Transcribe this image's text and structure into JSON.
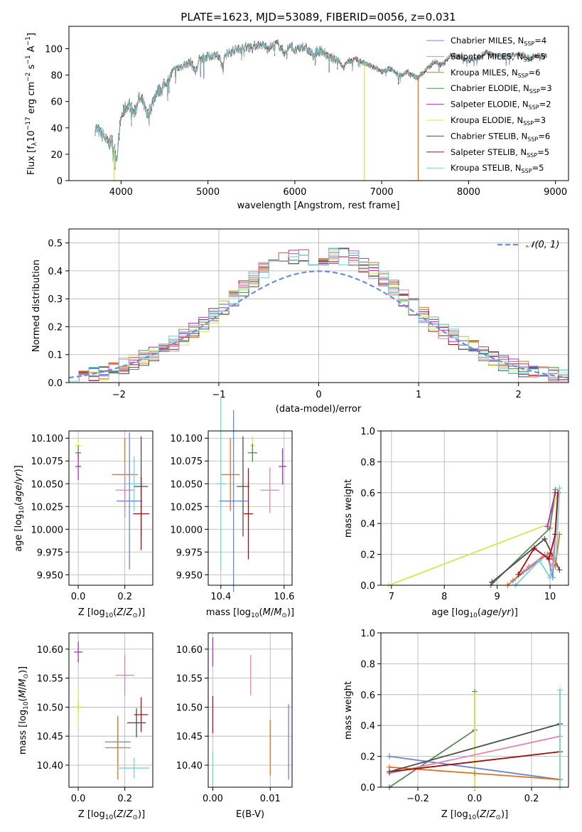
{
  "colors": {
    "blue": "#6b86d6",
    "pink": "#e283b4",
    "orange": "#e0731e",
    "green": "#5a8a5a",
    "purple": "#a630c0",
    "yellow": "#d4e84e",
    "darkgray": "#4d4d4d",
    "darkred": "#a01010",
    "cyan": "#76d2d8",
    "normal": "#6b8fd6"
  },
  "chart_data": [
    {
      "id": "spectrum",
      "type": "line",
      "title": "PLATE=1623, MJD=53089, FIBERID=0056, z=0.031",
      "xlabel": "wavelength [Angstrom, rest frame]",
      "ylabel": "Flux [fλ10⁻¹⁷ erg cm⁻² s⁻¹ A⁻¹]",
      "xlim": [
        3400,
        9150
      ],
      "ylim": [
        0,
        117
      ],
      "xticks": [
        "4000",
        "5000",
        "6000",
        "7000",
        "8000",
        "9000"
      ],
      "yticks": [
        "0",
        "20",
        "40",
        "60",
        "80",
        "100"
      ],
      "legend_position": "top-right",
      "spectrum_x": [
        3700,
        3750,
        3800,
        3850,
        3900,
        3950,
        4000,
        4050,
        4100,
        4150,
        4200,
        4250,
        4300,
        4400,
        4500,
        4600,
        4700,
        4800,
        4861,
        4900,
        5000,
        5100,
        5175,
        5200,
        5300,
        5400,
        5500,
        5600,
        5700,
        5800,
        5893,
        5950,
        6000,
        6100,
        6200,
        6300,
        6400,
        6500,
        6563,
        6600,
        6700,
        6800,
        6900,
        7000,
        7100,
        7200,
        7300,
        7400,
        7500,
        7600,
        7700,
        7800,
        7900,
        8000,
        8100,
        8200,
        8300,
        8400,
        8500,
        8600,
        8700,
        8800,
        8900
      ],
      "spectrum_y": [
        40,
        37,
        34,
        28,
        30,
        17,
        48,
        55,
        58,
        50,
        62,
        60,
        48,
        66,
        72,
        83,
        87,
        90,
        82,
        92,
        94,
        96,
        86,
        96,
        99,
        101,
        102,
        103,
        101,
        104,
        96,
        104,
        98,
        102,
        96,
        99,
        93,
        92,
        85,
        90,
        92,
        89,
        86,
        83,
        85,
        80,
        82,
        78,
        83,
        90,
        88,
        95,
        94,
        91,
        93,
        97,
        95,
        94,
        95,
        96,
        93,
        95,
        94
      ],
      "series": [
        {
          "name": "Chabrier MILES, N_SSP=4",
          "legend": "Chabrier MILES, N",
          "sub": "SSP",
          "suffix": "=4",
          "color": "blue"
        },
        {
          "name": "Salpeter MILES, N_SSP=5",
          "legend": "Salpeter MILES, N",
          "sub": "SSP",
          "suffix": "=5",
          "color": "pink"
        },
        {
          "name": "Kroupa MILES, N_SSP=6",
          "legend": "Kroupa MILES, N",
          "sub": "SSP",
          "suffix": "=6",
          "color": "orange"
        },
        {
          "name": "Chabrier ELODIE, N_SSP=3",
          "legend": "Chabrier ELODIE, N",
          "sub": "SSP",
          "suffix": "=3",
          "color": "green"
        },
        {
          "name": "Salpeter ELODIE, N_SSP=2",
          "legend": "Salpeter ELODIE, N",
          "sub": "SSP",
          "suffix": "=2",
          "color": "purple"
        },
        {
          "name": "Kroupa ELODIE, N_SSP=3",
          "legend": "Kroupa ELODIE, N",
          "sub": "SSP",
          "suffix": "=3",
          "color": "yellow"
        },
        {
          "name": "Chabrier STELIB, N_SSP=6",
          "legend": "Chabrier STELIB, N",
          "sub": "SSP",
          "suffix": "=6",
          "color": "darkgray"
        },
        {
          "name": "Salpeter STELIB, N_SSP=5",
          "legend": "Salpeter STELIB, N",
          "sub": "SSP",
          "suffix": "=5",
          "color": "darkred"
        },
        {
          "name": "Kroupa STELIB, N_SSP=5",
          "legend": "Kroupa STELIB, N",
          "sub": "SSP",
          "suffix": "=5",
          "color": "cyan"
        }
      ],
      "drops": [
        {
          "x": 3920,
          "color": "yellow"
        },
        {
          "x": 6800,
          "color": "yellow"
        },
        {
          "x": 7420,
          "color": "orange"
        }
      ]
    },
    {
      "id": "residuals",
      "type": "line",
      "xlabel": "(data-model)/error",
      "ylabel": "Normed distribution",
      "xlim": [
        -2.5,
        2.5
      ],
      "ylim": [
        0,
        0.55
      ],
      "xticks": [
        "−2",
        "−1",
        "0",
        "1",
        "2"
      ],
      "yticks": [
        "0.0",
        "0.1",
        "0.2",
        "0.3",
        "0.4",
        "0.5"
      ],
      "grid": true,
      "legend_position": "top-right",
      "normal_label": "𝒩(0, 1)",
      "bin_width": 0.1,
      "bin_start": -2.5,
      "hist_color_order": [
        "blue",
        "orange",
        "green",
        "darkred",
        "purple",
        "yellow",
        "darkgray",
        "pink",
        "cyan"
      ]
    },
    {
      "id": "age-vs-Z",
      "type": "scatter",
      "xlabel": "Z [log₁₀(Z/Z⊙)]",
      "ylabel": "age  [log₁₀(age/yr)]",
      "xlim": [
        -0.04,
        0.32
      ],
      "ylim": [
        9.9385,
        10.108
      ],
      "xticks": [
        "0.0",
        "0.2"
      ],
      "yticks": [
        "9.950",
        "9.975",
        "10.000",
        "10.025",
        "10.050",
        "10.075",
        "10.100"
      ],
      "grid": true,
      "points": [
        {
          "x": 0.0,
          "y": 10.092,
          "xerr": 0.012,
          "yerr": 0.01,
          "color": "yellow"
        },
        {
          "x": 0.0,
          "y": 10.084,
          "xerr": 0.012,
          "yerr": 0.008,
          "color": "green"
        },
        {
          "x": 0.0,
          "y": 10.069,
          "xerr": 0.012,
          "yerr": 0.015,
          "color": "purple"
        },
        {
          "x": 0.2,
          "y": 10.06,
          "xerr": 0.055,
          "yerr": 0.04,
          "color": "orange"
        },
        {
          "x": 0.2,
          "y": 10.043,
          "xerr": 0.04,
          "yerr": 0.03,
          "color": "pink"
        },
        {
          "x": 0.24,
          "y": 10.05,
          "xerr": 0.05,
          "yerr": 0.03,
          "color": "cyan"
        },
        {
          "x": 0.27,
          "y": 10.047,
          "xerr": 0.03,
          "yerr": 0.055,
          "color": "darkgray"
        },
        {
          "x": 0.22,
          "y": 10.031,
          "xerr": 0.055,
          "yerr": 0.075,
          "color": "blue"
        },
        {
          "x": 0.27,
          "y": 10.017,
          "xerr": 0.035,
          "yerr": 0.04,
          "color": "darkred"
        }
      ]
    },
    {
      "id": "age-vs-mass",
      "type": "scatter",
      "xlabel": "mass [log₁₀(M/M⊙)]",
      "ylabel": "",
      "xlim": [
        10.36,
        10.625
      ],
      "ylim": [
        9.9385,
        10.108
      ],
      "xticks": [
        "10.4",
        "10.6"
      ],
      "yticks": [
        "9.950",
        "9.975",
        "10.000",
        "10.025",
        "10.050",
        "10.075",
        "10.100"
      ],
      "grid": true,
      "points": [
        {
          "x": 10.5,
          "y": 10.092,
          "xerr": 0.008,
          "yerr": 0.01,
          "color": "yellow"
        },
        {
          "x": 10.5,
          "y": 10.084,
          "xerr": 0.015,
          "yerr": 0.01,
          "color": "green"
        },
        {
          "x": 10.595,
          "y": 10.069,
          "xerr": 0.012,
          "yerr": 0.02,
          "color": "purple"
        },
        {
          "x": 10.43,
          "y": 10.06,
          "xerr": 0.03,
          "yerr": 0.04,
          "color": "orange"
        },
        {
          "x": 10.555,
          "y": 10.043,
          "xerr": 0.03,
          "yerr": 0.025,
          "color": "pink"
        },
        {
          "x": 10.4,
          "y": 10.05,
          "xerr": 0.015,
          "yerr": 0.095,
          "color": "cyan"
        },
        {
          "x": 10.47,
          "y": 10.047,
          "xerr": 0.02,
          "yerr": 0.055,
          "color": "darkgray"
        },
        {
          "x": 10.44,
          "y": 10.031,
          "xerr": 0.045,
          "yerr": 0.1,
          "color": "blue"
        },
        {
          "x": 10.487,
          "y": 10.017,
          "xerr": 0.015,
          "yerr": 0.05,
          "color": "darkred"
        }
      ]
    },
    {
      "id": "massweight-vs-age",
      "type": "line",
      "xlabel": "age  [log₁₀(age/yr)]",
      "ylabel": "mass weight",
      "xlim": [
        6.8,
        10.35
      ],
      "ylim": [
        0,
        1.0
      ],
      "xticks": [
        "7",
        "8",
        "9",
        "10"
      ],
      "yticks": [
        "0.0",
        "0.2",
        "0.4",
        "0.6",
        "0.8",
        "1.0"
      ],
      "grid": true,
      "series": [
        {
          "color": "yellow",
          "x": [
            6.95,
            10.0,
            10.12
          ],
          "y": [
            0.0,
            0.4,
            0.58
          ]
        },
        {
          "color": "green",
          "x": [
            8.88,
            10.0,
            10.1
          ],
          "y": [
            0.0,
            0.37,
            0.62
          ]
        },
        {
          "color": "purple",
          "x": [
            9.95,
            10.1
          ],
          "y": [
            0.38,
            0.6
          ]
        },
        {
          "color": "darkgray",
          "x": [
            8.9,
            9.9,
            10.18
          ],
          "y": [
            0.02,
            0.3,
            0.1
          ]
        },
        {
          "color": "blue",
          "x": [
            9.3,
            9.95,
            10.05,
            10.15
          ],
          "y": [
            0.03,
            0.2,
            0.05,
            0.6
          ]
        },
        {
          "color": "orange",
          "x": [
            9.2,
            9.6,
            10.0,
            10.1,
            10.18
          ],
          "y": [
            0.0,
            0.12,
            0.21,
            0.12,
            0.33
          ]
        },
        {
          "color": "pink",
          "x": [
            9.5,
            9.9,
            10.05,
            10.15
          ],
          "y": [
            0.09,
            0.2,
            0.12,
            0.6
          ]
        },
        {
          "color": "darkred",
          "x": [
            9.4,
            9.7,
            9.98,
            10.1,
            10.15
          ],
          "y": [
            0.07,
            0.24,
            0.17,
            0.33,
            0.6
          ]
        },
        {
          "color": "cyan",
          "x": [
            9.35,
            9.8,
            10.0,
            10.12,
            10.18
          ],
          "y": [
            0.0,
            0.16,
            0.05,
            0.2,
            0.63
          ]
        }
      ]
    },
    {
      "id": "mass-vs-Z",
      "type": "scatter",
      "xlabel": "Z [log₁₀(Z/Z⊙)]",
      "ylabel": "mass [log₁₀(M/M⊙)]",
      "xlim": [
        -0.04,
        0.32
      ],
      "ylim": [
        10.362,
        10.628
      ],
      "xticks": [
        "0.0",
        "0.2"
      ],
      "yticks": [
        "10.40",
        "10.45",
        "10.50",
        "10.55",
        "10.60"
      ],
      "grid": true,
      "points": [
        {
          "x": 0.0,
          "y": 10.595,
          "xerr": 0.018,
          "yerr": 0.018,
          "color": "purple"
        },
        {
          "x": 0.0,
          "y": 10.5,
          "xerr": 0.018,
          "yerr": 0.01,
          "color": "green"
        },
        {
          "x": 0.0,
          "y": 10.5,
          "xerr": 0.018,
          "yerr": 0.03,
          "color": "yellow"
        },
        {
          "x": 0.2,
          "y": 10.555,
          "xerr": 0.04,
          "yerr": 0.035,
          "color": "pink"
        },
        {
          "x": 0.27,
          "y": 10.487,
          "xerr": 0.03,
          "yerr": 0.03,
          "color": "darkred"
        },
        {
          "x": 0.25,
          "y": 10.473,
          "xerr": 0.04,
          "yerr": 0.025,
          "color": "darkgray"
        },
        {
          "x": 0.17,
          "y": 10.44,
          "xerr": 0.055,
          "yerr": 0.035,
          "color": "blue"
        },
        {
          "x": 0.17,
          "y": 10.43,
          "xerr": 0.055,
          "yerr": 0.055,
          "color": "orange"
        },
        {
          "x": 0.24,
          "y": 10.395,
          "xerr": 0.065,
          "yerr": 0.018,
          "color": "cyan"
        }
      ]
    },
    {
      "id": "mass-vs-ebv",
      "type": "scatter",
      "xlabel": "E(B-V)",
      "ylabel": "",
      "xlim": [
        -0.0008,
        0.0138
      ],
      "ylim": [
        10.362,
        10.628
      ],
      "xticks": [
        "0.00",
        "0.01"
      ],
      "yticks": [
        "10.40",
        "10.45",
        "10.50",
        "10.55",
        "10.60"
      ],
      "grid": true,
      "points": [
        {
          "x": 0.0,
          "y": 10.595,
          "yerr": 0.025,
          "color": "purple"
        },
        {
          "x": 0.0,
          "y": 10.487,
          "yerr": 0.032,
          "color": "darkred"
        },
        {
          "x": 0.0,
          "y": 10.395,
          "yerr": 0.03,
          "color": "cyan"
        },
        {
          "x": 0.0066,
          "y": 10.555,
          "yerr": 0.035,
          "color": "pink"
        },
        {
          "x": 0.01,
          "y": 10.43,
          "yerr": 0.048,
          "color": "orange"
        },
        {
          "x": 0.0132,
          "y": 10.44,
          "yerr": 0.065,
          "color": "blue"
        }
      ]
    },
    {
      "id": "massweight-vs-Z",
      "type": "line",
      "xlabel": "Z [log₁₀(Z/Z⊙)]",
      "ylabel": "mass weight",
      "xlim": [
        -0.33,
        0.33
      ],
      "ylim": [
        0,
        1.0
      ],
      "xticks": [
        "−0.2",
        "0.0",
        "0.2"
      ],
      "yticks": [
        "0.0",
        "0.2",
        "0.4",
        "0.6",
        "0.8",
        "1.0"
      ],
      "grid": true,
      "series": [
        {
          "color": "green",
          "x": [
            -0.3,
            0.0,
            0.0
          ],
          "y": [
            0.0,
            0.37,
            0.62
          ]
        },
        {
          "color": "yellow",
          "x": [
            0.0,
            0.0
          ],
          "y": [
            0.0,
            0.6
          ]
        },
        {
          "color": "blue",
          "x": [
            -0.3,
            0.3
          ],
          "y": [
            0.2,
            0.05
          ]
        },
        {
          "color": "orange",
          "x": [
            -0.3,
            0.0,
            0.3
          ],
          "y": [
            0.13,
            0.09,
            0.05
          ]
        },
        {
          "color": "pink",
          "x": [
            -0.3,
            0.3
          ],
          "y": [
            0.09,
            0.33
          ]
        },
        {
          "color": "darkred",
          "x": [
            -0.3,
            0.3
          ],
          "y": [
            0.1,
            0.23
          ]
        },
        {
          "color": "darkgray",
          "x": [
            -0.3,
            0.3
          ],
          "y": [
            0.1,
            0.41
          ]
        },
        {
          "color": "cyan",
          "x": [
            0.3,
            0.3
          ],
          "y": [
            0.0,
            0.63
          ]
        }
      ]
    }
  ]
}
